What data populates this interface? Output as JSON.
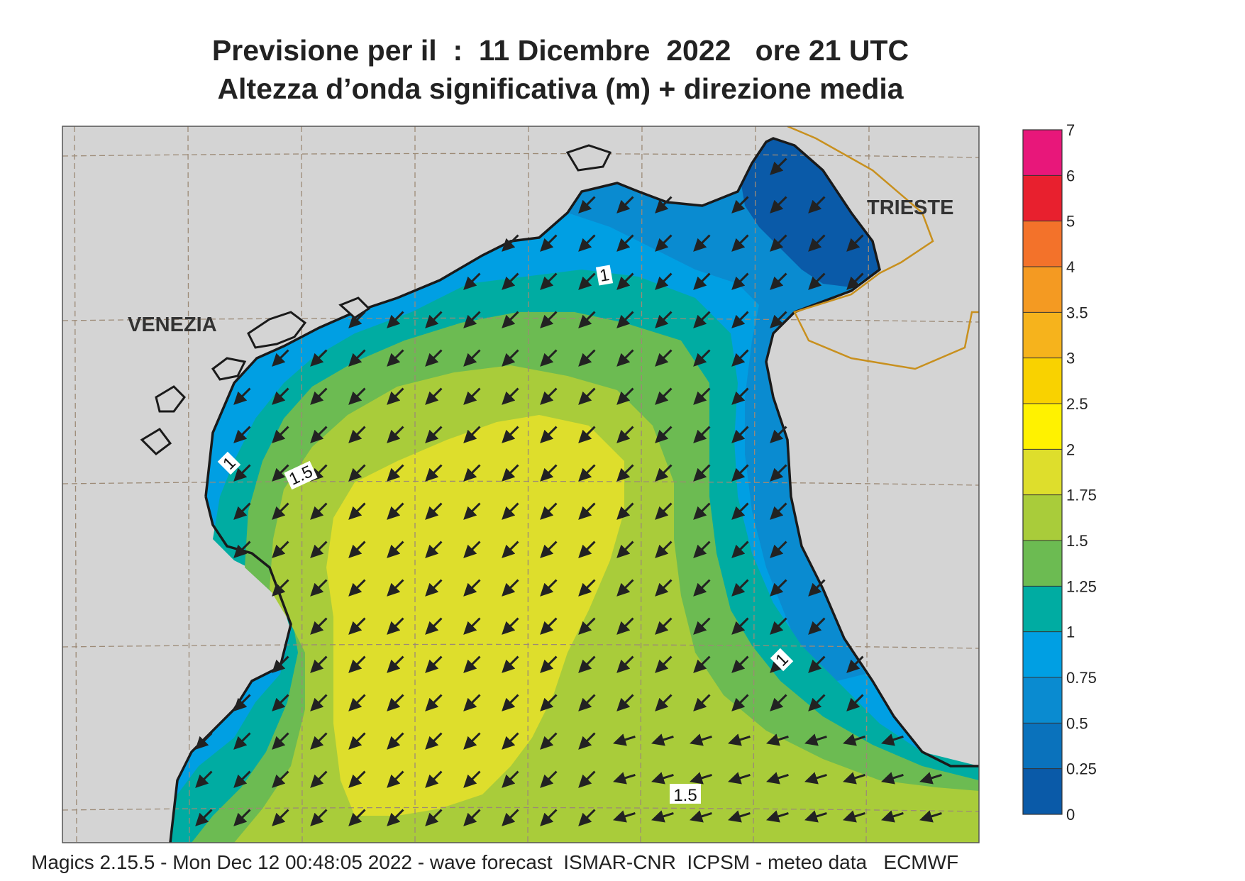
{
  "header": {
    "title_line1": "Previsione per il  :  11 Dicembre  2022   ore 21 UTC",
    "title_line2": "Altezza d’onda significativa (m) + direzione media"
  },
  "map": {
    "cities": [
      {
        "name": "VENEZIA"
      },
      {
        "name": "TRIESTE"
      }
    ],
    "contour_labels": [
      "1",
      "1",
      "1.5",
      "1",
      "1.5"
    ],
    "land_color": "#d4d4d4",
    "coast_color": "#1a1a1a",
    "border_color": "#c8901e",
    "graticule_color": "#9c8a76",
    "arrow_direction_deg": 225,
    "arrow_color": "#222222"
  },
  "legend": {
    "ticks": [
      "7",
      "6",
      "5",
      "4",
      "3.5",
      "3",
      "2.5",
      "2",
      "1.75",
      "1.5",
      "1.25",
      "1",
      "0.75",
      "0.5",
      "0.25",
      "0"
    ],
    "colors": [
      "#e8177a",
      "#e8202e",
      "#f3722a",
      "#f49a22",
      "#f6b31c",
      "#f9d200",
      "#fff200",
      "#dede2c",
      "#a9cc3a",
      "#6cbb52",
      "#00aca2",
      "#009fe3",
      "#0a8bd0",
      "#0a72bc",
      "#0a5aa8"
    ]
  },
  "footer": {
    "text": "Magics 2.15.5 - Mon Dec 12 00:48:05 2022 - wave forecast  ISMAR-CNR  ICPSM - meteo data   ECMWF"
  }
}
